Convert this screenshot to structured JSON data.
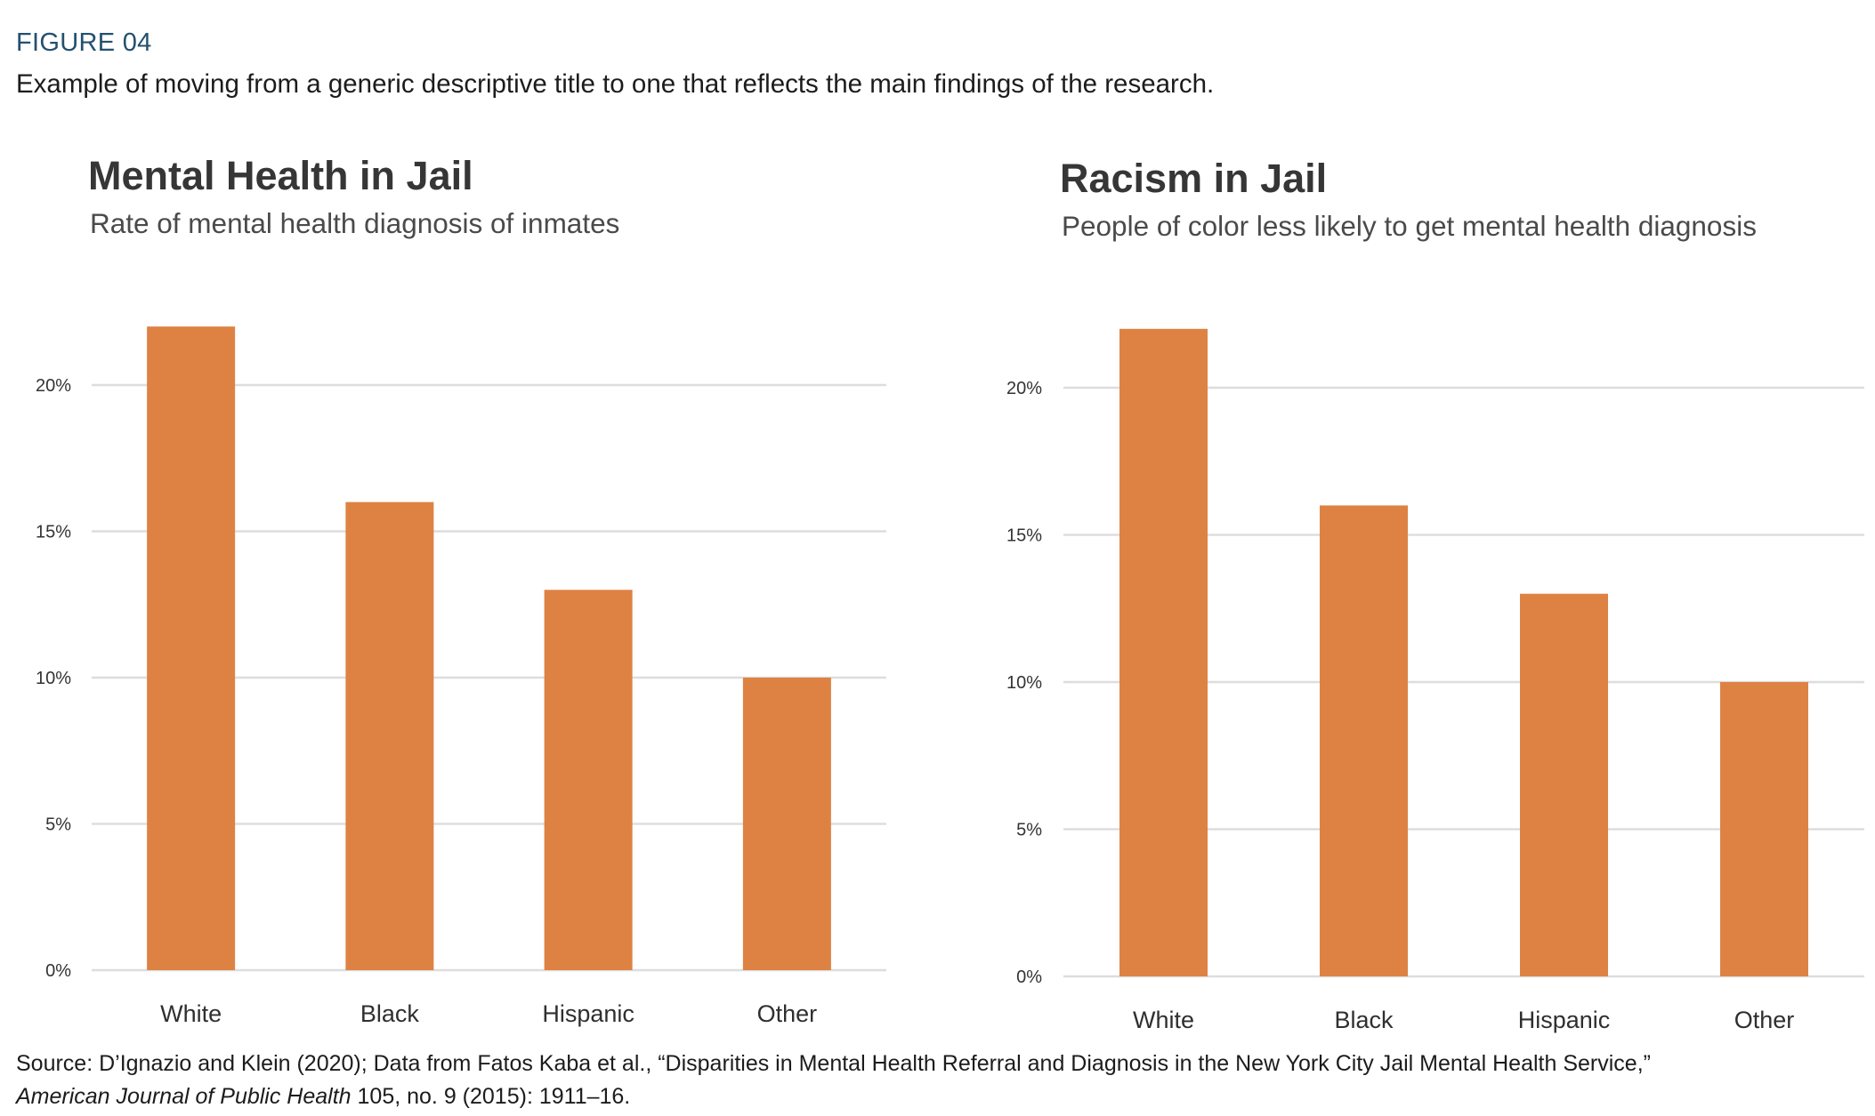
{
  "figure": {
    "label": "FIGURE 04",
    "description": "Example of moving from a generic descriptive title to one that reflects the main findings of the research.",
    "label_color": "#24506e"
  },
  "chart_data": [
    {
      "type": "bar",
      "title": "Mental Health in Jail",
      "subtitle": "Rate of mental health diagnosis of inmates",
      "categories": [
        "White",
        "Black",
        "Hispanic",
        "Other"
      ],
      "values": [
        22,
        16,
        13,
        10
      ],
      "value_unit": "%",
      "xlabel": "",
      "ylabel": "",
      "ylim": [
        0,
        22
      ],
      "yticks": [
        0,
        5,
        10,
        15,
        20
      ],
      "ytick_labels": [
        "0%",
        "5%",
        "10%",
        "15%",
        "20%"
      ],
      "grid": true,
      "legend": "none",
      "bar_color": "#de8244",
      "grid_color": "#dddddd"
    },
    {
      "type": "bar",
      "title": "Racism in Jail",
      "subtitle": "People of color less likely to get mental health diagnosis",
      "categories": [
        "White",
        "Black",
        "Hispanic",
        "Other"
      ],
      "values": [
        22,
        16,
        13,
        10
      ],
      "value_unit": "%",
      "xlabel": "",
      "ylabel": "",
      "ylim": [
        0,
        22
      ],
      "yticks": [
        0,
        5,
        10,
        15,
        20
      ],
      "ytick_labels": [
        "0%",
        "5%",
        "10%",
        "15%",
        "20%"
      ],
      "grid": true,
      "legend": "none",
      "bar_color": "#de8244",
      "grid_color": "#dddddd"
    }
  ],
  "source": {
    "line1": "Source: D’Ignazio and Klein (2020); Data from Fatos Kaba et al., “Disparities in Mental Health Referral and Diagnosis in the New York City Jail Mental Health Service,”",
    "line2_italic": "American Journal of Public Health",
    "line2_rest": " 105, no. 9 (2015): 1911–16."
  }
}
